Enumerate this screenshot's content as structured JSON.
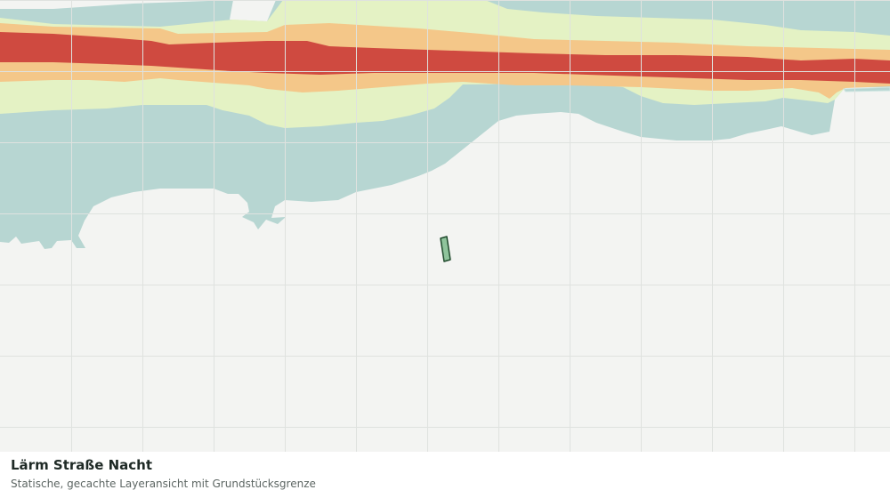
{
  "map": {
    "layer_title": "Lärm Straße Nacht",
    "layer_subtitle": "Statische, gecachte Layeransicht mit Grundstücksgrenze",
    "colors": {
      "background": "#f3f4f2",
      "grid": "#dfe2df",
      "water": "#b7d6d2",
      "noise_low": "#e4f2c4",
      "noise_medium": "#f4c789",
      "noise_high": "#cf4a40",
      "parcel_fill": "#8fc49c",
      "parcel_outline": "#1f4a2c"
    },
    "features": [
      "water-body",
      "noise-zone-low",
      "noise-zone-medium",
      "noise-zone-high",
      "property-parcel"
    ]
  }
}
